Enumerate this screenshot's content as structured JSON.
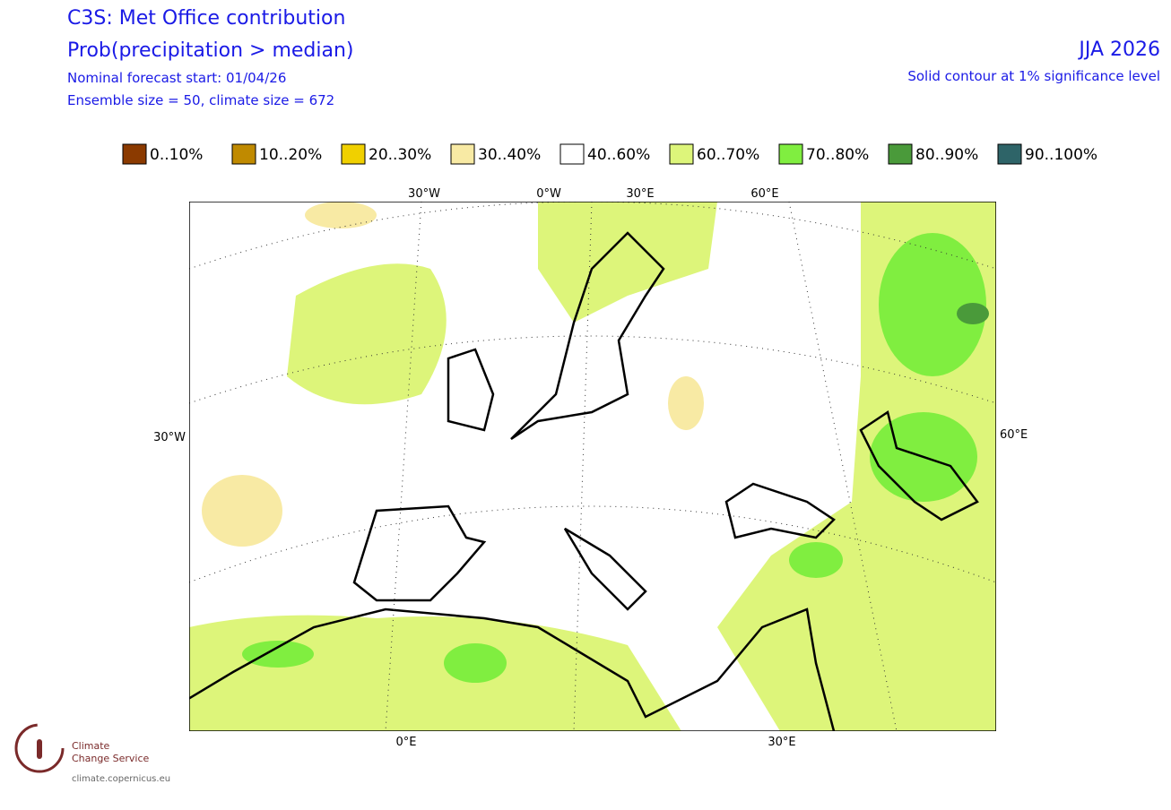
{
  "header": {
    "title": "C3S: Met Office contribution",
    "subtitle": "Prob(precipitation > median)",
    "forecast_start": "Nominal forecast start: 01/04/26",
    "ensemble": "Ensemble size = 50, climate size = 672",
    "season": "JJA 2026",
    "significance": "Solid contour at 1% significance level"
  },
  "legend": [
    {
      "label": "0..10%",
      "color": "#8b3a00"
    },
    {
      "label": "10..20%",
      "color": "#c08a00"
    },
    {
      "label": "20..30%",
      "color": "#f0d000"
    },
    {
      "label": "30..40%",
      "color": "#f8eaa4"
    },
    {
      "label": "40..60%",
      "color": "#ffffff"
    },
    {
      "label": "60..70%",
      "color": "#ddf57a"
    },
    {
      "label": "70..80%",
      "color": "#80ee40"
    },
    {
      "label": "80..90%",
      "color": "#4a9a3a"
    },
    {
      "label": "90..100%",
      "color": "#2e6468"
    }
  ],
  "map": {
    "top_labels": [
      "30°W",
      "0°W",
      "30°E",
      "60°E"
    ],
    "left_label": "30°W",
    "right_label": "60°E",
    "bottom_labels": [
      "0°E",
      "30°E"
    ]
  },
  "logo": {
    "line1": "Climate",
    "line2": "Change Service",
    "url": "climate.copernicus.eu"
  }
}
